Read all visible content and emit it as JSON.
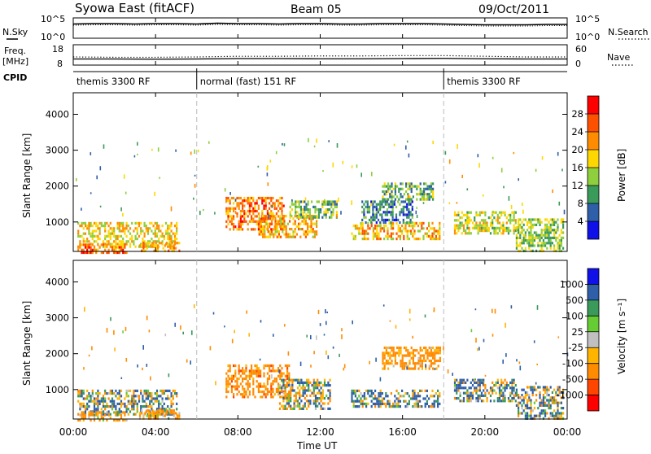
{
  "header": {
    "station": "Syowa East (fitACF)",
    "beam": "Beam 05",
    "date": "09/Oct/2011"
  },
  "left_labels": {
    "nsky": "N.Sky",
    "freq_line1": "Freq.",
    "freq_line2": "[MHz]",
    "cpid": "CPID"
  },
  "right_labels": {
    "nsearch": "N.Search",
    "nave": "Nave"
  },
  "chart_data": [
    {
      "type": "line",
      "panel": "noise",
      "series": [
        {
          "name": "N.Sky"
        },
        {
          "name": "N.Search"
        }
      ],
      "y_left_ticks": [
        "10^5",
        "10^0"
      ],
      "y_right_ticks": [
        "10^5",
        "10^0"
      ],
      "x": [
        0,
        1,
        2,
        3,
        4,
        5,
        6,
        7,
        8,
        9,
        10,
        11,
        12,
        13,
        14,
        15,
        16,
        17,
        18,
        19,
        20,
        21,
        22,
        23,
        24
      ],
      "values_log10": [
        3.5,
        3.6,
        3.6,
        3.5,
        3.6,
        3.6,
        3.5,
        3.7,
        3.6,
        3.6,
        3.5,
        3.6,
        3.6,
        3.5,
        3.5,
        3.6,
        3.6,
        3.6,
        3.5,
        3.4,
        3.3,
        3.3,
        3.3,
        3.4,
        3.4
      ]
    },
    {
      "type": "line",
      "panel": "frequency",
      "series": [
        {
          "name": "Freq."
        },
        {
          "name": "Nave"
        }
      ],
      "y_left_ticks": [
        "18",
        "8"
      ],
      "y_right_ticks": [
        "60",
        "0"
      ],
      "x": [
        0,
        2,
        4,
        6,
        8,
        10,
        12,
        14,
        16,
        18,
        20,
        22,
        24
      ],
      "freq_mhz": [
        11.0,
        11.0,
        10.9,
        11.0,
        11.2,
        11.2,
        11.1,
        11.1,
        11.2,
        11.3,
        11.1,
        11.0,
        11.0
      ],
      "nave": [
        24,
        23,
        23,
        24,
        26,
        26,
        27,
        27,
        28,
        28,
        26,
        24,
        24
      ]
    },
    {
      "type": "table",
      "panel": "cpid",
      "segments": [
        {
          "label": "themis 3300 RF",
          "start": 0,
          "end": 6
        },
        {
          "label": "normal (fast) 151 RF",
          "start": 6,
          "end": 18
        },
        {
          "label": "themis 3300 RF",
          "start": 18,
          "end": 24
        }
      ]
    },
    {
      "type": "heatmap",
      "panel": "power",
      "ylabel": "Slant Range [km]",
      "yticks": [
        1000,
        2000,
        3000,
        4000
      ],
      "ylim": [
        180,
        4600
      ],
      "colorbar_label": "Power [dB]",
      "colorbar_ticks": [
        "28",
        "24",
        "20",
        "16",
        "12",
        "8",
        "4"
      ],
      "colorbar_colors": [
        "#ff0000",
        "#ff5000",
        "#ff8c00",
        "#ffd700",
        "#8fce3c",
        "#3a9a5a",
        "#2e5fa8",
        "#1010e8"
      ],
      "regions": [
        {
          "t0": 0.2,
          "t1": 5.0,
          "r0": 300,
          "r1": 1000,
          "value": 18
        },
        {
          "t0": 0.2,
          "t1": 2.6,
          "r0": 180,
          "r1": 400,
          "value": 24
        },
        {
          "t0": 3.2,
          "t1": 5.2,
          "r0": 180,
          "r1": 450,
          "value": 22
        },
        {
          "t0": 7.4,
          "t1": 10.2,
          "r0": 800,
          "r1": 1700,
          "value": 24
        },
        {
          "t0": 9.0,
          "t1": 11.8,
          "r0": 600,
          "r1": 1200,
          "value": 20
        },
        {
          "t0": 10.5,
          "t1": 12.8,
          "r0": 1100,
          "r1": 1600,
          "value": 12
        },
        {
          "t0": 13.5,
          "t1": 17.8,
          "r0": 500,
          "r1": 1000,
          "value": 20
        },
        {
          "t0": 15.0,
          "t1": 17.5,
          "r0": 1600,
          "r1": 2100,
          "value": 12
        },
        {
          "t0": 14.0,
          "t1": 16.5,
          "r0": 1000,
          "r1": 1600,
          "value": 8
        },
        {
          "t0": 18.5,
          "t1": 21.5,
          "r0": 700,
          "r1": 1300,
          "value": 16
        },
        {
          "t0": 21.5,
          "t1": 23.8,
          "r0": 200,
          "r1": 1100,
          "value": 14
        }
      ]
    },
    {
      "type": "heatmap",
      "panel": "velocity",
      "xlabel": "Time UT",
      "ylabel": "Slant Range [km]",
      "xticks": [
        "00:00",
        "04:00",
        "08:00",
        "12:00",
        "16:00",
        "20:00",
        "00:00"
      ],
      "yticks": [
        1000,
        2000,
        3000,
        4000
      ],
      "ylim": [
        180,
        4600
      ],
      "colorbar_label": "Velocity [m s⁻¹]",
      "colorbar_ticks": [
        "1000",
        "500",
        "100",
        "25",
        "-25",
        "-100",
        "-500",
        "-1000"
      ],
      "colorbar_colors": [
        "#1010e8",
        "#2e5fa8",
        "#3a9a5a",
        "#66cc33",
        "#c0c0c0",
        "#ffb400",
        "#ff8c00",
        "#ff4500",
        "#ff0000"
      ],
      "regions": [
        {
          "t0": 0.2,
          "t1": 5.0,
          "r0": 300,
          "r1": 1000,
          "value": 60
        },
        {
          "t0": 0.2,
          "t1": 2.6,
          "r0": 180,
          "r1": 400,
          "value": -200
        },
        {
          "t0": 3.2,
          "t1": 5.2,
          "r0": 180,
          "r1": 450,
          "value": -200
        },
        {
          "t0": 7.4,
          "t1": 10.5,
          "r0": 800,
          "r1": 1700,
          "value": -300
        },
        {
          "t0": 10.0,
          "t1": 12.5,
          "r0": 500,
          "r1": 1300,
          "value": 0
        },
        {
          "t0": 13.5,
          "t1": 17.8,
          "r0": 500,
          "r1": 1000,
          "value": 80
        },
        {
          "t0": 15.0,
          "t1": 17.8,
          "r0": 1600,
          "r1": 2200,
          "value": -250
        },
        {
          "t0": 18.5,
          "t1": 21.5,
          "r0": 700,
          "r1": 1300,
          "value": 80
        },
        {
          "t0": 21.5,
          "t1": 23.8,
          "r0": 200,
          "r1": 1100,
          "value": 60
        }
      ]
    }
  ]
}
